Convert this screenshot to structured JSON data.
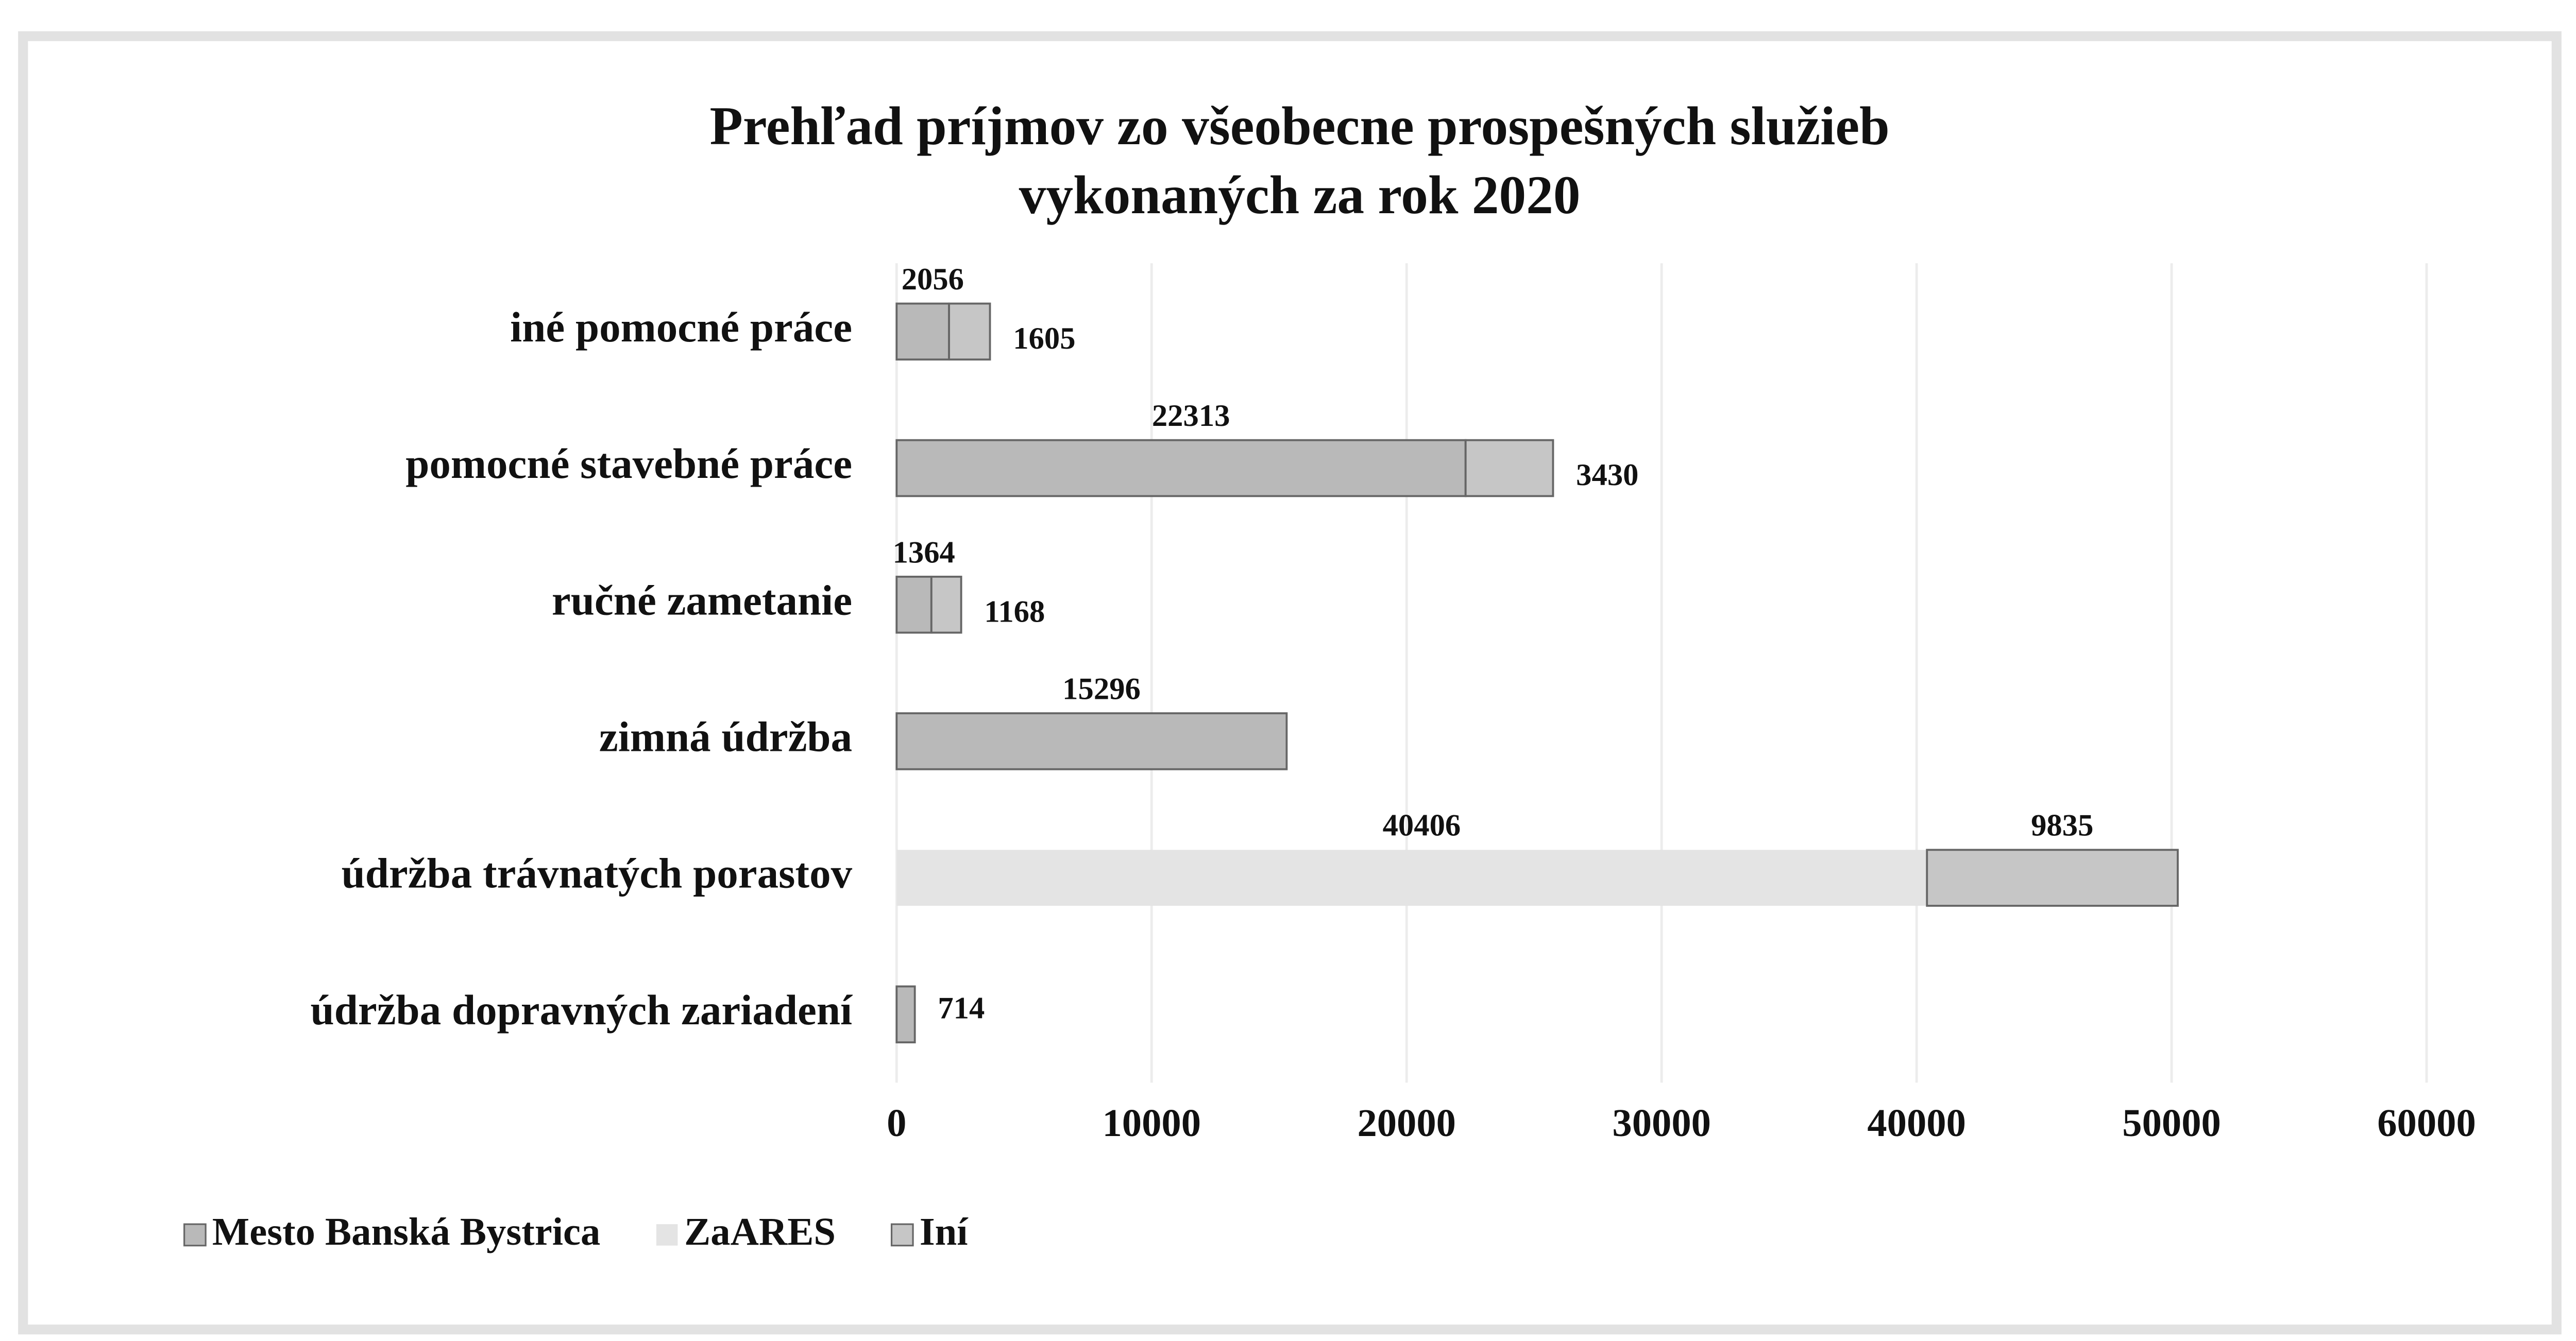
{
  "chart_data": {
    "type": "bar",
    "orientation": "horizontal",
    "stacked": true,
    "title": [
      "Prehľad príjmov zo všeobecne prospešných služieb",
      "vykonaných za rok 2020"
    ],
    "categories": [
      "iné pomocné práce",
      "pomocné stavebné práce",
      "ručné zametanie",
      "zimná údržba",
      "údržba trávnatých porastov",
      "údržba dopravných zariadení"
    ],
    "series": [
      {
        "name": "Mesto Banská Bystrica",
        "color": "#b9b9b9",
        "values": [
          2056,
          22313,
          1364,
          15296,
          null,
          714
        ]
      },
      {
        "name": "ZaARES",
        "color": "#e4e4e4",
        "values": [
          null,
          null,
          null,
          null,
          40406,
          null
        ]
      },
      {
        "name": "Iní",
        "color": "#c6c6c6",
        "values": [
          1605,
          3430,
          1168,
          null,
          9835,
          null
        ]
      }
    ],
    "xlim": [
      0,
      60000
    ],
    "xticks": [
      0,
      10000,
      20000,
      30000,
      40000,
      50000,
      60000
    ],
    "grid": true,
    "legend": "bottom-left"
  }
}
